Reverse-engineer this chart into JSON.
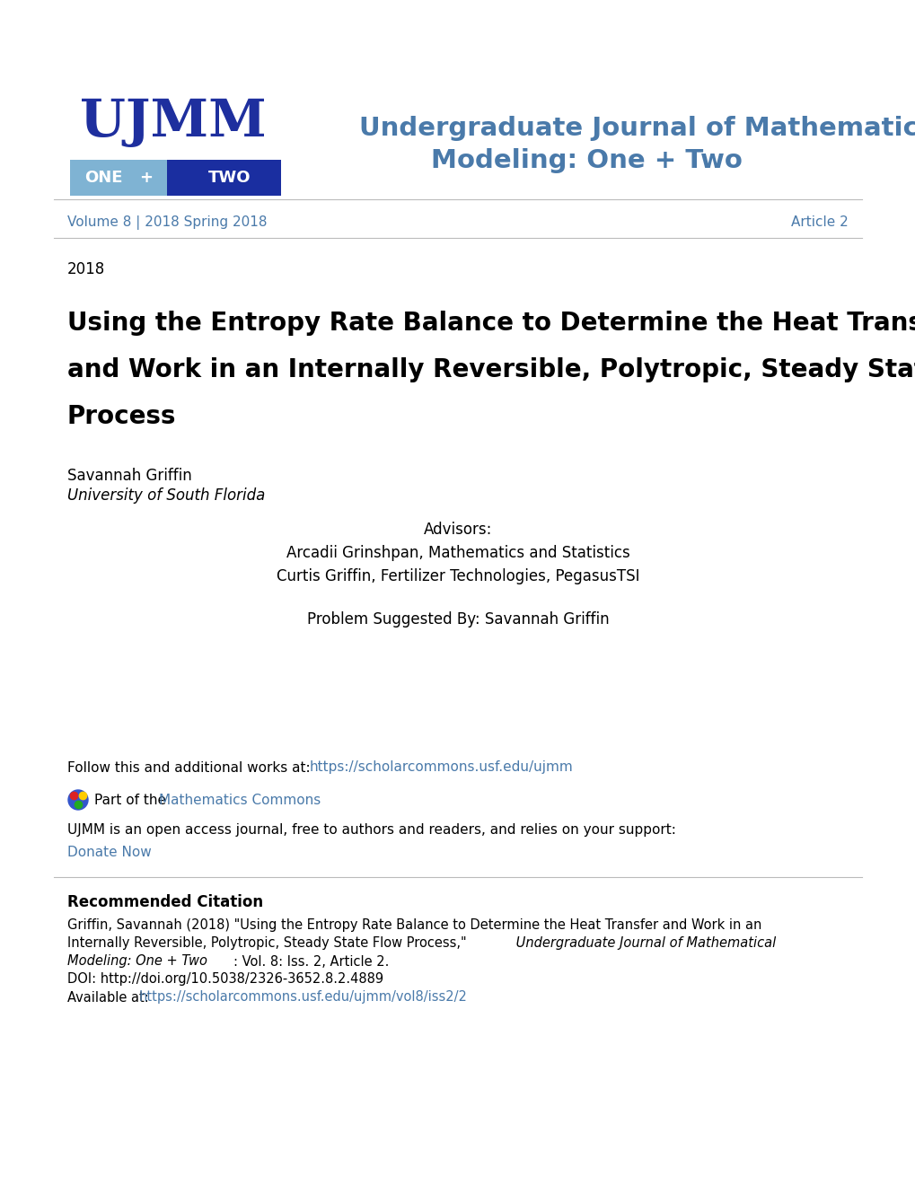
{
  "bg_color": "#ffffff",
  "logo_ujmm_color": "#1e2f9e",
  "logo_one_bg": "#7ab0d4",
  "logo_two_bg": "#1a2ea0",
  "header_title_line1": "Undergraduate Journal of Mathematical",
  "header_title_line2": "Modeling: One + Two",
  "header_title_color": "#4a7aaa",
  "volume_text": "Volume 8 | 2018 Spring 2018",
  "article_text": "Article 2",
  "volume_color": "#4a7aaa",
  "year_text": "2018",
  "main_title_line1": "Using the Entropy Rate Balance to Determine the Heat Transfer",
  "main_title_line2": "and Work in an Internally Reversible, Polytropic, Steady State Flow",
  "main_title_line3": "Process",
  "main_title_color": "#000000",
  "author_name": "Savannah Griffin",
  "author_institution": "University of South Florida",
  "advisors_label": "Advisors:",
  "advisor1": "Arcadii Grinshpan, Mathematics and Statistics",
  "advisor2": "Curtis Griffin, Fertilizer Technologies, PegasusTSI",
  "problem_suggested": "Problem Suggested By: Savannah Griffin",
  "follow_text": "Follow this and additional works at: ",
  "follow_link": "https://scholarcommons.usf.edu/ujmm",
  "link_color": "#4a7aaa",
  "part_of_text": "Part of the ",
  "math_commons": "Mathematics Commons",
  "open_access_text": "UJMM is an open access journal, free to authors and readers, and relies on your support:",
  "donate_text": "Donate Now",
  "rec_citation_title": "Recommended Citation",
  "citation_line1": "Griffin, Savannah (2018) \"Using the Entropy Rate Balance to Determine the Heat Transfer and Work in an",
  "citation_line2_normal": "Internally Reversible, Polytropic, Steady State Flow Process,\"",
  "citation_line2_italic": " Undergraduate Journal of Mathematical",
  "citation_line3_italic": "Modeling: One + Two",
  "citation_line3_normal": ": Vol. 8: Iss. 2, Article 2.",
  "citation_doi": "DOI: http://doi.org/10.5038/2326-3652.8.2.4889",
  "citation_available_normal": "Available at: ",
  "citation_available_link": "https://scholarcommons.usf.edu/ujmm/vol8/iss2/2",
  "separator_color": "#bbbbbb"
}
